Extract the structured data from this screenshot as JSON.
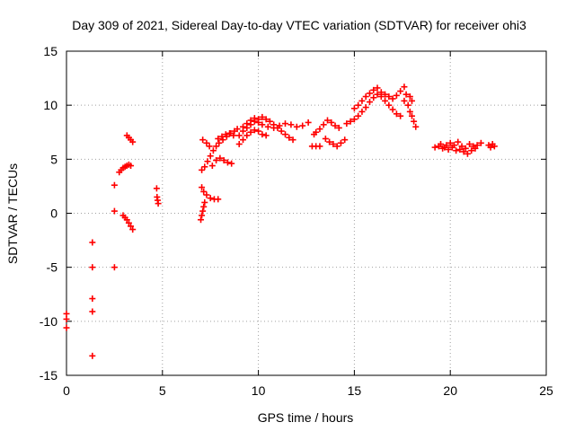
{
  "chart_data": {
    "type": "scatter",
    "title": "Day 309 of 2021, Sidereal Day-to-day VTEC variation (SDTVAR) for receiver ohi3",
    "xlabel": "GPS time / hours",
    "ylabel": "SDTVAR / TECUs",
    "xlim": [
      0,
      25
    ],
    "ylim": [
      -15,
      15
    ],
    "xticks": [
      0,
      5,
      10,
      15,
      20,
      25
    ],
    "yticks": [
      -15,
      -10,
      -5,
      0,
      5,
      10,
      15
    ],
    "x_tick_labels": [
      "0",
      "5",
      "10",
      "15",
      "20",
      "25"
    ],
    "y_tick_labels": [
      "-15",
      "-10",
      "-5",
      "0",
      "5",
      "10",
      "15"
    ],
    "grid": true,
    "marker": "+",
    "color": "#ff0000",
    "points": [
      [
        0.0,
        -9.3
      ],
      [
        0.0,
        -9.8
      ],
      [
        0.0,
        -10.6
      ],
      [
        1.35,
        -2.7
      ],
      [
        1.35,
        -5.0
      ],
      [
        1.35,
        -7.9
      ],
      [
        1.35,
        -9.1
      ],
      [
        1.35,
        -13.2
      ],
      [
        2.5,
        2.6
      ],
      [
        2.5,
        0.2
      ],
      [
        2.5,
        -5.0
      ],
      [
        2.75,
        3.8
      ],
      [
        2.85,
        4.0
      ],
      [
        2.95,
        4.2
      ],
      [
        3.05,
        4.3
      ],
      [
        3.15,
        4.4
      ],
      [
        3.25,
        4.5
      ],
      [
        3.35,
        4.4
      ],
      [
        3.15,
        7.2
      ],
      [
        3.25,
        7.0
      ],
      [
        3.35,
        6.8
      ],
      [
        3.45,
        6.6
      ],
      [
        2.95,
        -0.2
      ],
      [
        3.05,
        -0.4
      ],
      [
        3.15,
        -0.6
      ],
      [
        3.25,
        -0.9
      ],
      [
        3.35,
        -1.2
      ],
      [
        3.45,
        -1.5
      ],
      [
        4.7,
        2.3
      ],
      [
        4.72,
        1.5
      ],
      [
        4.75,
        1.2
      ],
      [
        4.78,
        0.9
      ],
      [
        7.0,
        -0.6
      ],
      [
        7.05,
        -0.2
      ],
      [
        7.1,
        0.2
      ],
      [
        7.15,
        0.6
      ],
      [
        7.2,
        1.0
      ],
      [
        7.05,
        2.4
      ],
      [
        7.15,
        2.0
      ],
      [
        7.3,
        1.7
      ],
      [
        7.5,
        1.4
      ],
      [
        7.7,
        1.3
      ],
      [
        7.9,
        1.3
      ],
      [
        7.05,
        4.0
      ],
      [
        7.2,
        4.3
      ],
      [
        7.35,
        4.8
      ],
      [
        7.5,
        5.3
      ],
      [
        7.65,
        5.8
      ],
      [
        7.8,
        6.2
      ],
      [
        7.95,
        6.5
      ],
      [
        8.15,
        6.8
      ],
      [
        8.35,
        7.1
      ],
      [
        8.55,
        7.4
      ],
      [
        8.75,
        7.6
      ],
      [
        8.9,
        7.8
      ],
      [
        7.1,
        6.8
      ],
      [
        7.3,
        6.5
      ],
      [
        7.45,
        6.2
      ],
      [
        7.6,
        4.4
      ],
      [
        7.8,
        4.9
      ],
      [
        8.0,
        5.1
      ],
      [
        8.2,
        4.9
      ],
      [
        8.4,
        4.7
      ],
      [
        8.6,
        4.6
      ],
      [
        7.9,
        6.9
      ],
      [
        8.1,
        7.1
      ],
      [
        8.3,
        7.3
      ],
      [
        8.5,
        7.4
      ],
      [
        8.7,
        7.2
      ],
      [
        9.0,
        7.2
      ],
      [
        9.2,
        7.6
      ],
      [
        9.4,
        7.9
      ],
      [
        9.6,
        8.2
      ],
      [
        9.8,
        8.5
      ],
      [
        10.0,
        8.7
      ],
      [
        10.2,
        8.9
      ],
      [
        10.4,
        8.7
      ],
      [
        10.6,
        8.5
      ],
      [
        10.8,
        8.2
      ],
      [
        11.0,
        7.9
      ],
      [
        11.2,
        7.6
      ],
      [
        11.4,
        7.3
      ],
      [
        11.6,
        7.0
      ],
      [
        11.8,
        6.8
      ],
      [
        9.2,
        8.0
      ],
      [
        9.4,
        8.3
      ],
      [
        9.6,
        8.6
      ],
      [
        9.8,
        8.8
      ],
      [
        10.0,
        8.4
      ],
      [
        10.2,
        8.2
      ],
      [
        10.5,
        8.0
      ],
      [
        10.8,
        7.9
      ],
      [
        11.1,
        8.1
      ],
      [
        11.4,
        8.3
      ],
      [
        11.7,
        8.2
      ],
      [
        12.0,
        8.0
      ],
      [
        12.3,
        8.1
      ],
      [
        12.6,
        8.4
      ],
      [
        9.0,
        6.4
      ],
      [
        9.2,
        6.8
      ],
      [
        9.4,
        7.2
      ],
      [
        9.6,
        7.5
      ],
      [
        9.8,
        7.7
      ],
      [
        10.0,
        7.6
      ],
      [
        10.2,
        7.3
      ],
      [
        10.4,
        7.2
      ],
      [
        12.9,
        7.3
      ],
      [
        13.0,
        7.5
      ],
      [
        13.2,
        7.8
      ],
      [
        13.4,
        8.2
      ],
      [
        13.6,
        8.6
      ],
      [
        13.8,
        8.4
      ],
      [
        14.0,
        8.1
      ],
      [
        14.2,
        7.9
      ],
      [
        12.8,
        6.2
      ],
      [
        13.0,
        6.2
      ],
      [
        13.2,
        6.2
      ],
      [
        13.5,
        6.9
      ],
      [
        13.7,
        6.6
      ],
      [
        13.9,
        6.4
      ],
      [
        14.1,
        6.2
      ],
      [
        14.3,
        6.5
      ],
      [
        14.5,
        6.8
      ],
      [
        14.6,
        8.3
      ],
      [
        14.8,
        8.5
      ],
      [
        15.0,
        8.7
      ],
      [
        15.2,
        9.0
      ],
      [
        15.4,
        9.4
      ],
      [
        15.6,
        9.8
      ],
      [
        15.8,
        10.3
      ],
      [
        16.0,
        10.7
      ],
      [
        16.2,
        11.0
      ],
      [
        16.4,
        11.2
      ],
      [
        16.6,
        11.0
      ],
      [
        16.8,
        10.8
      ],
      [
        17.0,
        10.6
      ],
      [
        17.2,
        10.9
      ],
      [
        17.4,
        11.3
      ],
      [
        17.6,
        11.7
      ],
      [
        15.0,
        9.7
      ],
      [
        15.2,
        10.0
      ],
      [
        15.4,
        10.4
      ],
      [
        15.6,
        10.8
      ],
      [
        15.8,
        11.1
      ],
      [
        16.0,
        11.4
      ],
      [
        16.2,
        11.6
      ],
      [
        16.4,
        10.8
      ],
      [
        16.6,
        10.4
      ],
      [
        16.8,
        10.0
      ],
      [
        17.0,
        9.6
      ],
      [
        17.2,
        9.2
      ],
      [
        17.4,
        9.0
      ],
      [
        17.6,
        10.4
      ],
      [
        17.8,
        10.0
      ],
      [
        17.9,
        9.4
      ],
      [
        18.0,
        9.0
      ],
      [
        18.1,
        8.5
      ],
      [
        18.2,
        8.0
      ],
      [
        17.7,
        11.0
      ],
      [
        17.9,
        10.8
      ],
      [
        18.0,
        10.4
      ],
      [
        19.2,
        6.1
      ],
      [
        19.4,
        6.2
      ],
      [
        19.6,
        6.0
      ],
      [
        19.8,
        6.3
      ],
      [
        20.0,
        6.5
      ],
      [
        20.2,
        6.3
      ],
      [
        20.4,
        6.6
      ],
      [
        20.6,
        6.2
      ],
      [
        20.8,
        6.0
      ],
      [
        21.0,
        6.4
      ],
      [
        21.2,
        6.2
      ],
      [
        21.4,
        6.3
      ],
      [
        21.6,
        6.5
      ],
      [
        19.5,
        6.4
      ],
      [
        19.7,
        6.1
      ],
      [
        19.9,
        5.9
      ],
      [
        20.1,
        6.1
      ],
      [
        20.3,
        5.8
      ],
      [
        20.5,
        5.9
      ],
      [
        20.7,
        5.7
      ],
      [
        20.9,
        5.5
      ],
      [
        21.1,
        5.8
      ],
      [
        21.3,
        6.0
      ],
      [
        22.0,
        6.3
      ],
      [
        22.1,
        6.1
      ],
      [
        22.2,
        6.4
      ],
      [
        22.3,
        6.2
      ]
    ]
  }
}
